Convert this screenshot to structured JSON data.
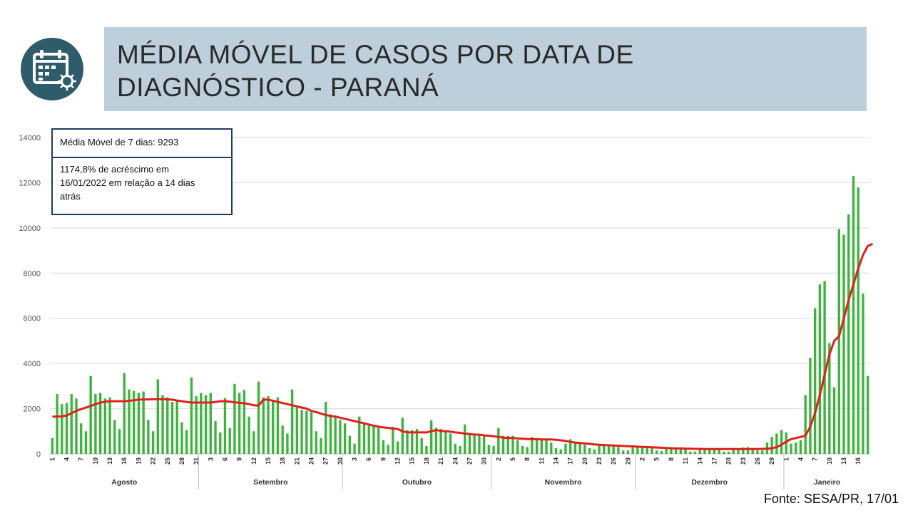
{
  "header": {
    "title_line1": "MÉDIA MÓVEL DE CASOS POR DATA DE",
    "title_line2": "DIAGNÓSTICO - PARANÁ",
    "icon": "calendar-virus-icon"
  },
  "info_box": {
    "moving_average": "Média Móvel de 7 dias: 9293",
    "increase_text": "1174,8% de acréscimo em 16/01/2022 em relação a 14 dias atrás"
  },
  "source": "Fonte: SESA/PR, 17/01",
  "colors": {
    "bars": "#3cb43c",
    "line": "#e0201c",
    "banner": "#bccfdb",
    "icon": "#2e5c6b",
    "box_border": "#1f3b64"
  },
  "chart_data": {
    "type": "bar",
    "title": "",
    "xlabel": "",
    "ylabel": "",
    "ylim": [
      0,
      14000
    ],
    "yticks": [
      "0",
      "2000",
      "4000",
      "6000",
      "8000",
      "10000",
      "12000",
      "14000"
    ],
    "grid": true,
    "start_date": "2021-08-01",
    "x_tick_labels": [
      "1",
      "4",
      "7",
      "10",
      "13",
      "16",
      "19",
      "22",
      "25",
      "28",
      "31",
      "3",
      "6",
      "9",
      "12",
      "15",
      "18",
      "21",
      "24",
      "27",
      "30",
      "3",
      "6",
      "9",
      "12",
      "15",
      "18",
      "21",
      "24",
      "27",
      "30",
      "2",
      "5",
      "8",
      "11",
      "14",
      "17",
      "20",
      "23",
      "26",
      "29",
      "2",
      "5",
      "8",
      "11",
      "14",
      "17",
      "20",
      "23",
      "26",
      "29",
      "1",
      "4",
      "7",
      "10",
      "13",
      "16"
    ],
    "months": [
      "Agosto",
      "Setembro",
      "Outubro",
      "Novembro",
      "Dezembro",
      "Janeiro"
    ],
    "series": [
      {
        "kind": "bar",
        "values": [
          700,
          2650,
          2200,
          2250,
          2650,
          2450,
          1350,
          1000,
          3450,
          2650,
          2700,
          2450,
          2500,
          1500,
          1100,
          3580,
          2850,
          2780,
          2700,
          2760,
          1500,
          1000,
          3300,
          2600,
          2500,
          2300,
          2400,
          1400,
          1050,
          3380,
          2550,
          2700,
          2600,
          2700,
          1450,
          950,
          2470,
          1150,
          3100,
          2700,
          2830,
          1650,
          1000,
          3200,
          2500,
          2550,
          2300,
          2500,
          1250,
          900,
          2850,
          2050,
          1950,
          1900,
          1850,
          1000,
          700,
          2300,
          1750,
          1700,
          1500,
          1350,
          800,
          450,
          1650,
          1350,
          1250,
          1250,
          1150,
          600,
          400,
          1200,
          550,
          1600,
          1050,
          1050,
          1100,
          700,
          350,
          1480,
          1150,
          1100,
          1050,
          900,
          450,
          350,
          1300,
          900,
          850,
          850,
          800,
          400,
          350,
          1150,
          800,
          800,
          800,
          600,
          350,
          300,
          750,
          700,
          650,
          600,
          500,
          250,
          200,
          450,
          650,
          500,
          450,
          400,
          250,
          200,
          450,
          400,
          350,
          350,
          300,
          150,
          150,
          350,
          300,
          300,
          300,
          250,
          150,
          120,
          280,
          250,
          250,
          220,
          200,
          100,
          100,
          200,
          200,
          220,
          220,
          200,
          100,
          100,
          200,
          250,
          280,
          300,
          250,
          150,
          150,
          500,
          750,
          900,
          1050,
          950,
          450,
          500,
          600,
          2600,
          4250,
          6450,
          7500,
          7650,
          4900,
          2950,
          9950,
          9700,
          10600,
          12300,
          11800,
          7100,
          3450
        ]
      },
      {
        "kind": "line",
        "values": [
          1650,
          1650,
          1660,
          1700,
          1800,
          1900,
          1980,
          2050,
          2120,
          2200,
          2260,
          2310,
          2330,
          2330,
          2330,
          2330,
          2350,
          2370,
          2400,
          2410,
          2410,
          2420,
          2420,
          2420,
          2410,
          2400,
          2360,
          2330,
          2300,
          2270,
          2270,
          2270,
          2270,
          2270,
          2300,
          2330,
          2330,
          2310,
          2280,
          2260,
          2240,
          2200,
          2150,
          2130,
          2400,
          2400,
          2350,
          2300,
          2250,
          2200,
          2150,
          2100,
          2050,
          2000,
          1900,
          1850,
          1780,
          1720,
          1680,
          1650,
          1600,
          1550,
          1500,
          1450,
          1400,
          1350,
          1300,
          1250,
          1200,
          1170,
          1150,
          1120,
          1100,
          1000,
          950,
          950,
          950,
          950,
          950,
          1000,
          1050,
          1020,
          1000,
          980,
          950,
          930,
          900,
          880,
          850,
          850,
          820,
          800,
          780,
          750,
          720,
          700,
          700,
          680,
          670,
          660,
          650,
          650,
          640,
          640,
          640,
          620,
          600,
          570,
          530,
          500,
          480,
          460,
          440,
          420,
          400,
          390,
          380,
          370,
          360,
          350,
          340,
          330,
          320,
          310,
          300,
          290,
          280,
          270,
          260,
          250,
          240,
          240,
          230,
          230,
          220,
          220,
          210,
          210,
          210,
          210,
          210,
          210,
          210,
          210,
          210,
          210,
          210,
          215,
          220,
          230,
          250,
          300,
          400,
          550,
          650,
          700,
          750,
          800,
          1200,
          1800,
          2600,
          3500,
          4400,
          5000,
          5200,
          6000,
          6800,
          7500,
          8200,
          8800,
          9200,
          9293
        ]
      }
    ]
  }
}
